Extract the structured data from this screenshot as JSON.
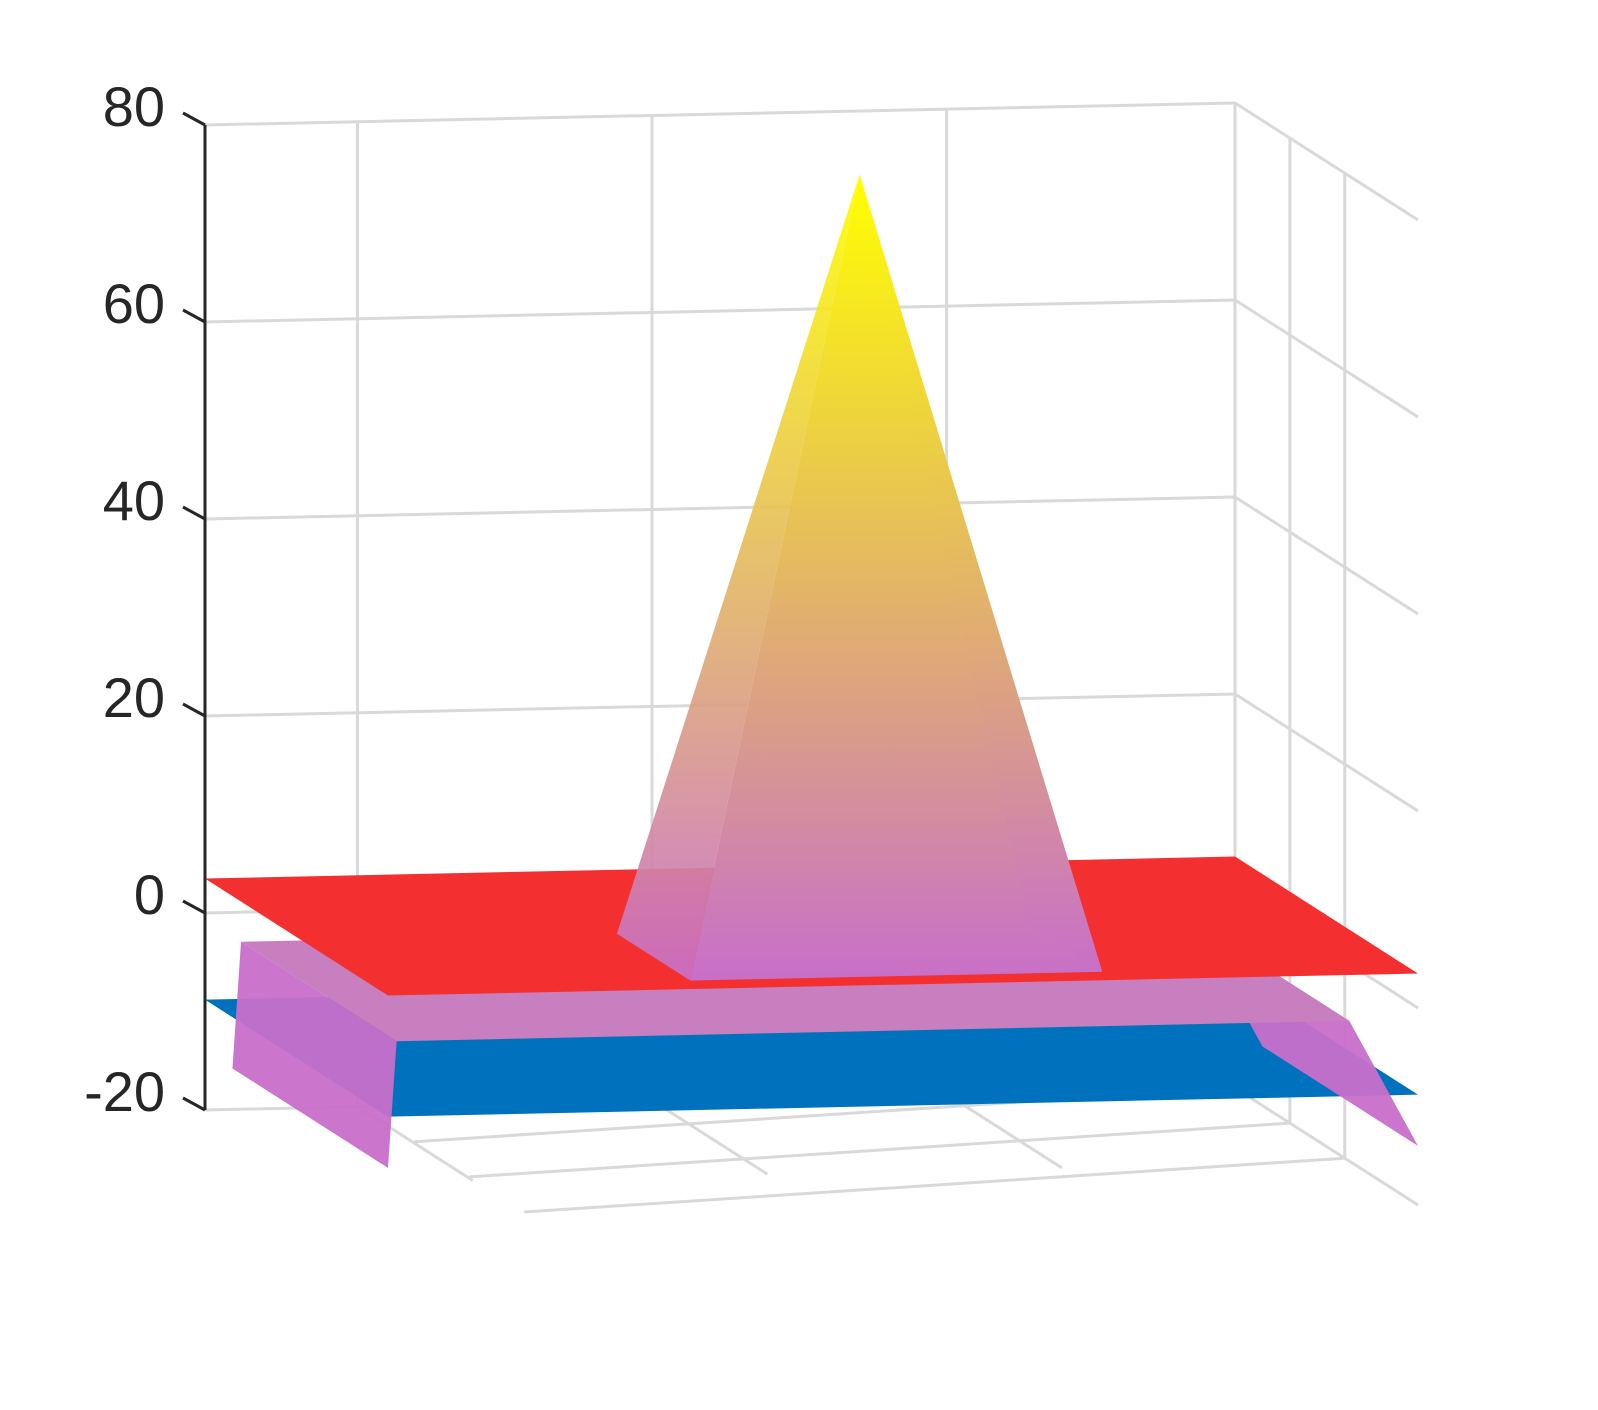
{
  "chart_data": {
    "type": "surface3d",
    "zlim": [
      -20,
      80
    ],
    "zticks": [
      -20,
      0,
      20,
      40,
      60,
      80
    ],
    "grid": true,
    "planes": [
      {
        "color": "#0072bd",
        "z": -8.8
      },
      {
        "color": "#f42f30",
        "z": 3.5
      }
    ],
    "pyramid": {
      "peak": 76,
      "base": -3,
      "skirt": -14,
      "color_top": "#ffff00",
      "color_base": "#c86fc9"
    }
  }
}
